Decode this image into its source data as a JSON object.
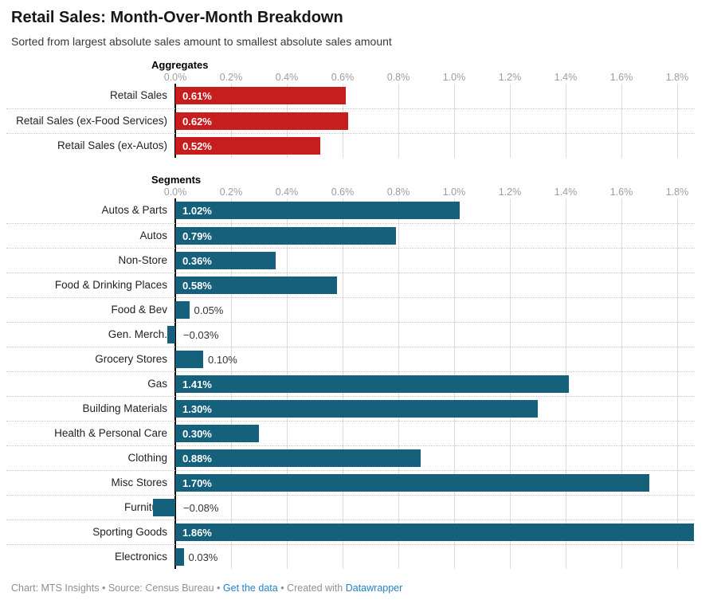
{
  "header": {
    "title": "Retail Sales: Month-Over-Month Breakdown",
    "subtitle": "Sorted from largest absolute sales amount to smallest absolute sales amount"
  },
  "chart_data": {
    "type": "bar",
    "orientation": "horizontal",
    "title": "Retail Sales: Month-Over-Month Breakdown",
    "subtitle": "Sorted from largest absolute sales amount to smallest absolute sales amount",
    "unit": "%",
    "xlim": [
      0,
      1.86
    ],
    "tick_step": 0.2,
    "tick_labels": [
      "0.0%",
      "0.2%",
      "0.4%",
      "0.6%",
      "0.8%",
      "1.0%",
      "1.2%",
      "1.4%",
      "1.6%",
      "1.8%"
    ],
    "grid": true,
    "colors": {
      "aggregates": "#c71e1d",
      "segments": "#15607a"
    },
    "groups": [
      {
        "name": "Aggregates",
        "color": "#c71e1d",
        "bars": [
          {
            "label": "Retail Sales",
            "value": 0.61,
            "display": "0.61%"
          },
          {
            "label": "Retail Sales (ex-Food Services)",
            "value": 0.62,
            "display": "0.62%"
          },
          {
            "label": "Retail Sales (ex-Autos)",
            "value": 0.52,
            "display": "0.52%"
          }
        ]
      },
      {
        "name": "Segments",
        "color": "#15607a",
        "bars": [
          {
            "label": "Autos & Parts",
            "value": 1.02,
            "display": "1.02%"
          },
          {
            "label": "Autos",
            "value": 0.79,
            "display": "0.79%"
          },
          {
            "label": "Non-Store",
            "value": 0.36,
            "display": "0.36%"
          },
          {
            "label": "Food & Drinking Places",
            "value": 0.58,
            "display": "0.58%"
          },
          {
            "label": "Food & Bev",
            "value": 0.05,
            "display": "0.05%"
          },
          {
            "label": "Gen. Merch.",
            "value": -0.03,
            "display": "−0.03%"
          },
          {
            "label": "Grocery Stores",
            "value": 0.1,
            "display": "0.10%"
          },
          {
            "label": "Gas",
            "value": 1.41,
            "display": "1.41%"
          },
          {
            "label": "Building Materials",
            "value": 1.3,
            "display": "1.30%"
          },
          {
            "label": "Health & Personal Care",
            "value": 0.3,
            "display": "0.30%"
          },
          {
            "label": "Clothing",
            "value": 0.88,
            "display": "0.88%"
          },
          {
            "label": "Misc Stores",
            "value": 1.7,
            "display": "1.70%"
          },
          {
            "label": "Furniture",
            "value": -0.08,
            "display": "−0.08%"
          },
          {
            "label": "Sporting Goods",
            "value": 1.86,
            "display": "1.86%"
          },
          {
            "label": "Electronics",
            "value": 0.03,
            "display": "0.03%"
          }
        ]
      }
    ],
    "footer": "Chart: MTS Insights • Source: Census Bureau • Get the data • Created with Datawrapper"
  },
  "footer": {
    "chart_credit": "Chart: MTS Insights",
    "separator": "•",
    "source_label": "Source: Census Bureau",
    "get_data_link": "Get the data",
    "created_with": "Created with",
    "datawrapper_link": "Datawrapper",
    "link_color": "#2383c4"
  }
}
